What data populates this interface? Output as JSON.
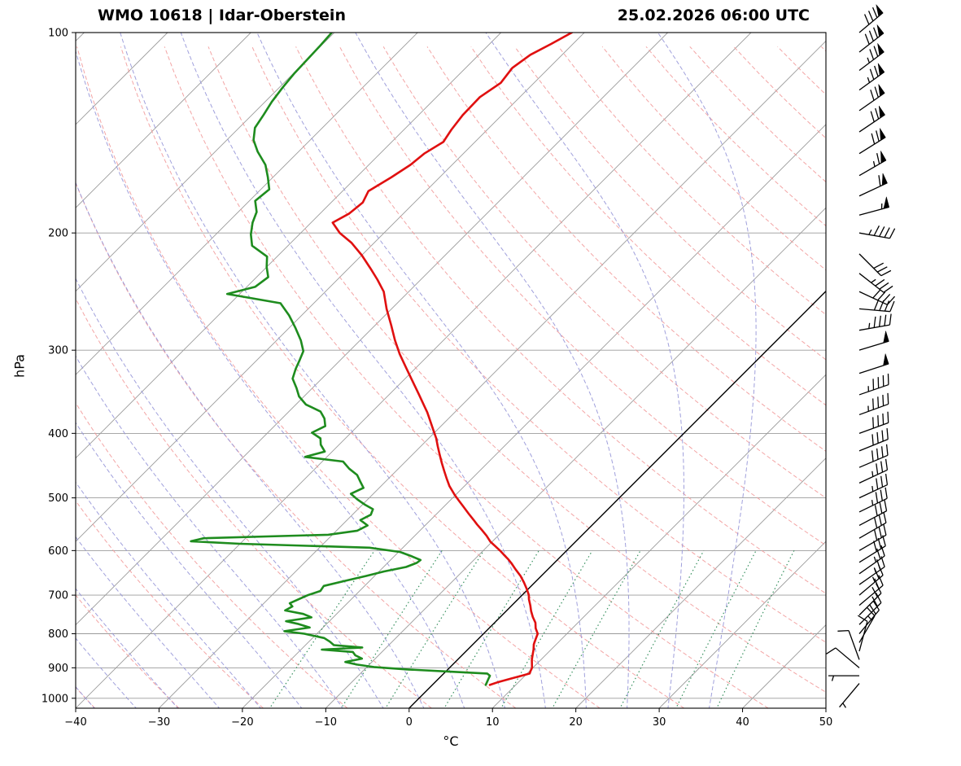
{
  "header": {
    "station": "WMO 10618 | Idar-Oberstein",
    "datetime": "25.02.2026 06:00 UTC"
  },
  "axes": {
    "ylabel": "hPa",
    "xlabel": "°C",
    "pressure_ticks": [
      100,
      200,
      300,
      400,
      500,
      600,
      700,
      800,
      900,
      1000
    ],
    "temp_ticks": [
      -40,
      -30,
      -20,
      -10,
      0,
      10,
      20,
      30,
      40,
      50
    ]
  },
  "chart_data": {
    "type": "skewt-logp",
    "title": "WMO 10618 | Idar-Oberstein",
    "subtitle": "25.02.2026 06:00 UTC",
    "xlabel": "°C",
    "ylabel": "hPa",
    "xlim": [
      -40,
      50
    ],
    "plim": [
      100,
      1035
    ],
    "skew_deg": 45,
    "grid": true,
    "isotherms_c": [
      -120,
      -110,
      -100,
      -90,
      -80,
      -70,
      -60,
      -50,
      -40,
      -30,
      -20,
      -10,
      0,
      10,
      20,
      30,
      40,
      50
    ],
    "zero_isotherm_c": 0,
    "dry_adiabats_theta_c": [
      -40,
      -30,
      -20,
      -10,
      0,
      10,
      20,
      30,
      40,
      50,
      60,
      70,
      80,
      90,
      100,
      110,
      120,
      130,
      140,
      150,
      160,
      170,
      180,
      190,
      200
    ],
    "moist_adiabats_thetaw_c": [
      -60,
      -55,
      -50,
      -45,
      -40,
      -35,
      -30,
      -25,
      -20,
      -15,
      -10,
      -5,
      0,
      5,
      10,
      15,
      20,
      25,
      30,
      35
    ],
    "mixing_ratio_g_per_kg": [
      1,
      2,
      3,
      5,
      8,
      12,
      20,
      30,
      40
    ],
    "mixing_ratio_top_hpa": 600,
    "temperature_curve": {
      "name": "temperature",
      "color": "#e01010",
      "points": [
        [
          955,
          6.9
        ],
        [
          945,
          7.6
        ],
        [
          935,
          8.6
        ],
        [
          925,
          9.6
        ],
        [
          918,
          10.3
        ],
        [
          910,
          10.1
        ],
        [
          900,
          9.9
        ],
        [
          890,
          9.5
        ],
        [
          875,
          8.9
        ],
        [
          860,
          8.4
        ],
        [
          845,
          7.9
        ],
        [
          830,
          7.3
        ],
        [
          815,
          6.9
        ],
        [
          800,
          6.5
        ],
        [
          785,
          5.6
        ],
        [
          770,
          4.9
        ],
        [
          755,
          3.9
        ],
        [
          740,
          3.0
        ],
        [
          725,
          2.2
        ],
        [
          710,
          1.3
        ],
        [
          700,
          0.8
        ],
        [
          685,
          -0.2
        ],
        [
          670,
          -1.3
        ],
        [
          655,
          -2.5
        ],
        [
          640,
          -3.9
        ],
        [
          628,
          -5.0
        ],
        [
          619,
          -5.9
        ],
        [
          610,
          -6.9
        ],
        [
          600,
          -8.0
        ],
        [
          590,
          -9.2
        ],
        [
          582,
          -10.2
        ],
        [
          570,
          -11.4
        ],
        [
          560,
          -12.5
        ],
        [
          548,
          -13.9
        ],
        [
          540,
          -14.8
        ],
        [
          528,
          -16.2
        ],
        [
          515,
          -17.7
        ],
        [
          505,
          -18.9
        ],
        [
          495,
          -20.1
        ],
        [
          480,
          -21.8
        ],
        [
          468,
          -23.0
        ],
        [
          456,
          -24.2
        ],
        [
          443,
          -25.5
        ],
        [
          430,
          -26.8
        ],
        [
          418,
          -28.0
        ],
        [
          407,
          -29.1
        ],
        [
          395,
          -30.5
        ],
        [
          380,
          -32.3
        ],
        [
          372,
          -33.3
        ],
        [
          364,
          -34.4
        ],
        [
          350,
          -36.4
        ],
        [
          334,
          -38.8
        ],
        [
          320,
          -41.0
        ],
        [
          304,
          -43.6
        ],
        [
          290,
          -45.8
        ],
        [
          275,
          -48.1
        ],
        [
          260,
          -50.6
        ],
        [
          245,
          -53.0
        ],
        [
          235,
          -55.2
        ],
        [
          226,
          -57.4
        ],
        [
          216,
          -60.0
        ],
        [
          207,
          -62.7
        ],
        [
          200,
          -65.3
        ],
        [
          193,
          -67.4
        ],
        [
          187,
          -66.5
        ],
        [
          180,
          -66.2
        ],
        [
          173,
          -66.9
        ],
        [
          165,
          -65.8
        ],
        [
          158,
          -65.0
        ],
        [
          152,
          -64.7
        ],
        [
          146,
          -63.8
        ],
        [
          140,
          -64.3
        ],
        [
          133,
          -64.7
        ],
        [
          125,
          -64.8
        ],
        [
          119,
          -64.0
        ],
        [
          113,
          -64.4
        ],
        [
          108,
          -63.8
        ],
        [
          104,
          -62.6
        ],
        [
          100,
          -61.5
        ]
      ]
    },
    "dewpoint_curve": {
      "name": "dewpoint",
      "color": "#1e8c1e",
      "points": [
        [
          955,
          6.4
        ],
        [
          945,
          6.2
        ],
        [
          935,
          6.0
        ],
        [
          925,
          5.8
        ],
        [
          918,
          5.2
        ],
        [
          912,
          0.5
        ],
        [
          905,
          -5.0
        ],
        [
          898,
          -9.0
        ],
        [
          890,
          -11.5
        ],
        [
          882,
          -13.2
        ],
        [
          872,
          -11.6
        ],
        [
          862,
          -12.8
        ],
        [
          852,
          -13.5
        ],
        [
          845,
          -17.5
        ],
        [
          839,
          -12.9
        ],
        [
          832,
          -16.6
        ],
        [
          822,
          -17.5
        ],
        [
          812,
          -18.6
        ],
        [
          800,
          -21.5
        ],
        [
          793,
          -24.2
        ],
        [
          783,
          -21.6
        ],
        [
          773,
          -23.5
        ],
        [
          766,
          -25.2
        ],
        [
          756,
          -22.6
        ],
        [
          747,
          -24.0
        ],
        [
          738,
          -26.6
        ],
        [
          728,
          -26.2
        ],
        [
          720,
          -26.9
        ],
        [
          710,
          -26.3
        ],
        [
          700,
          -25.7
        ],
        [
          690,
          -24.7
        ],
        [
          678,
          -24.9
        ],
        [
          666,
          -22.9
        ],
        [
          655,
          -21.0
        ],
        [
          645,
          -19.4
        ],
        [
          635,
          -17.3
        ],
        [
          626,
          -16.5
        ],
        [
          620,
          -16.4
        ],
        [
          612,
          -17.9
        ],
        [
          603,
          -19.8
        ],
        [
          594,
          -24.0
        ],
        [
          586,
          -40.0
        ],
        [
          581,
          -46.2
        ],
        [
          575,
          -45.0
        ],
        [
          568,
          -30.5
        ],
        [
          560,
          -27.5
        ],
        [
          550,
          -26.9
        ],
        [
          540,
          -28.4
        ],
        [
          530,
          -27.8
        ],
        [
          520,
          -28.2
        ],
        [
          512,
          -29.7
        ],
        [
          503,
          -31.2
        ],
        [
          493,
          -32.7
        ],
        [
          483,
          -31.9
        ],
        [
          472,
          -33.1
        ],
        [
          462,
          -34.2
        ],
        [
          452,
          -35.9
        ],
        [
          441,
          -37.5
        ],
        [
          434,
          -42.6
        ],
        [
          426,
          -40.9
        ],
        [
          416,
          -42.2
        ],
        [
          407,
          -43.0
        ],
        [
          399,
          -44.7
        ],
        [
          390,
          -43.9
        ],
        [
          380,
          -44.9
        ],
        [
          371,
          -46.2
        ],
        [
          362,
          -48.8
        ],
        [
          352,
          -50.6
        ],
        [
          342,
          -51.9
        ],
        [
          331,
          -53.5
        ],
        [
          320,
          -54.3
        ],
        [
          310,
          -54.9
        ],
        [
          301,
          -55.5
        ],
        [
          290,
          -57.1
        ],
        [
          278,
          -59.2
        ],
        [
          266,
          -61.5
        ],
        [
          255,
          -64.0
        ],
        [
          247,
          -71.5
        ],
        [
          241,
          -69.0
        ],
        [
          233,
          -68.6
        ],
        [
          225,
          -70.0
        ],
        [
          217,
          -71.2
        ],
        [
          209,
          -74.3
        ],
        [
          201,
          -75.8
        ],
        [
          193,
          -77.0
        ],
        [
          186,
          -77.8
        ],
        [
          179,
          -79.3
        ],
        [
          172,
          -79.0
        ],
        [
          165,
          -80.6
        ],
        [
          158,
          -82.4
        ],
        [
          151,
          -84.9
        ],
        [
          145,
          -86.8
        ],
        [
          139,
          -88.1
        ],
        [
          133,
          -88.6
        ],
        [
          127,
          -89.2
        ],
        [
          121,
          -89.6
        ],
        [
          115,
          -89.9
        ],
        [
          110,
          -90.0
        ],
        [
          105,
          -90.1
        ],
        [
          100,
          -90.3
        ]
      ]
    },
    "wind_barbs_kt": [
      [
        950,
        40,
        7
      ],
      [
        925,
        90,
        5
      ],
      [
        900,
        130,
        8
      ],
      [
        875,
        160,
        10
      ],
      [
        850,
        195,
        12
      ],
      [
        825,
        210,
        15
      ],
      [
        800,
        220,
        18
      ],
      [
        775,
        225,
        20
      ],
      [
        750,
        225,
        20
      ],
      [
        725,
        230,
        22
      ],
      [
        700,
        230,
        25
      ],
      [
        675,
        235,
        25
      ],
      [
        650,
        235,
        25
      ],
      [
        625,
        238,
        28
      ],
      [
        600,
        240,
        30
      ],
      [
        575,
        240,
        30
      ],
      [
        550,
        242,
        32
      ],
      [
        525,
        244,
        33
      ],
      [
        500,
        245,
        35
      ],
      [
        475,
        245,
        35
      ],
      [
        450,
        247,
        38
      ],
      [
        425,
        248,
        40
      ],
      [
        400,
        250,
        42
      ],
      [
        375,
        250,
        45
      ],
      [
        350,
        251,
        45
      ],
      [
        325,
        252,
        48
      ],
      [
        300,
        253,
        50
      ],
      [
        280,
        260,
        45
      ],
      [
        260,
        275,
        40
      ],
      [
        245,
        295,
        40
      ],
      [
        230,
        308,
        35
      ],
      [
        215,
        315,
        30
      ],
      [
        200,
        280,
        45
      ],
      [
        188,
        255,
        55
      ],
      [
        176,
        245,
        60
      ],
      [
        164,
        240,
        65
      ],
      [
        152,
        238,
        68
      ],
      [
        141,
        236,
        70
      ],
      [
        131,
        235,
        72
      ],
      [
        122,
        234,
        75
      ],
      [
        114,
        233,
        75
      ],
      [
        107,
        232,
        78
      ],
      [
        100,
        230,
        80
      ]
    ],
    "colors": {
      "isobar": "#9b9b9b",
      "isotherm": "#9b9b9b",
      "zero_isotherm": "#000000",
      "dry_adiabat": "#f29b9b",
      "moist_adiabat": "#9696d8",
      "mixing_ratio": "#2e8b57",
      "temperature": "#e01010",
      "dewpoint": "#1e8c1e",
      "barb": "#000000",
      "frame": "#000000"
    }
  }
}
